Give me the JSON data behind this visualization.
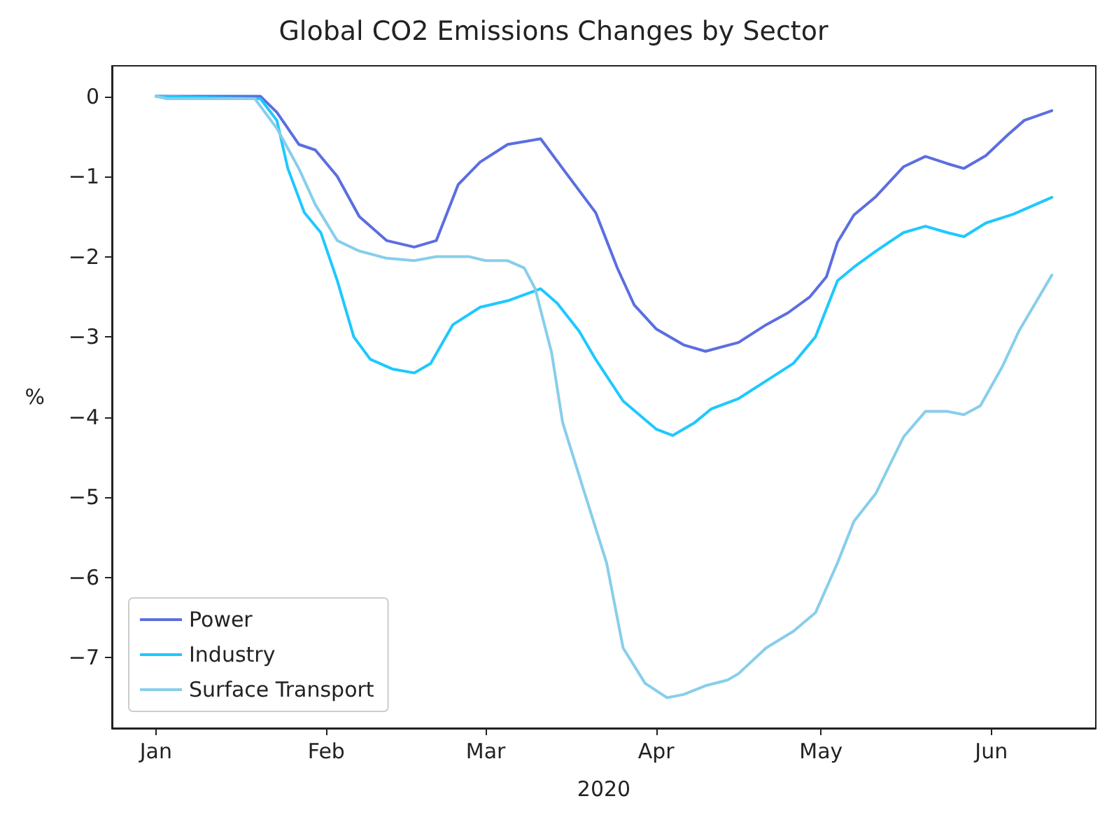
{
  "chart_data": {
    "type": "line",
    "title": "Global CO2 Emissions Changes by Sector",
    "xlabel": "2020",
    "ylabel": "%",
    "xlim": [
      "2019-12-24",
      "2020-06-20"
    ],
    "ylim": [
      -7.88,
      0.38
    ],
    "xticks": [
      {
        "value": "2020-01-01",
        "label": "Jan"
      },
      {
        "value": "2020-02-01",
        "label": "Feb"
      },
      {
        "value": "2020-03-01",
        "label": "Mar"
      },
      {
        "value": "2020-04-01",
        "label": "Apr"
      },
      {
        "value": "2020-05-01",
        "label": "May"
      },
      {
        "value": "2020-06-01",
        "label": "Jun"
      }
    ],
    "yticks": [
      0,
      -1,
      -2,
      -3,
      -4,
      -5,
      -6,
      -7
    ],
    "grid": false,
    "legend": "bottom left",
    "marker": "none",
    "line_style": "solid",
    "series": [
      {
        "name": "Power",
        "color": "#5b6ee1",
        "x": [
          "2020-01-01",
          "2020-01-20",
          "2020-01-23",
          "2020-01-27",
          "2020-01-30",
          "2020-02-03",
          "2020-02-07",
          "2020-02-12",
          "2020-02-17",
          "2020-02-21",
          "2020-02-25",
          "2020-02-29",
          "2020-03-05",
          "2020-03-11",
          "2020-03-15",
          "2020-03-21",
          "2020-03-25",
          "2020-03-28",
          "2020-04-01",
          "2020-04-06",
          "2020-04-10",
          "2020-04-16",
          "2020-04-21",
          "2020-04-25",
          "2020-04-29",
          "2020-05-02",
          "2020-05-04",
          "2020-05-07",
          "2020-05-11",
          "2020-05-16",
          "2020-05-20",
          "2020-05-24",
          "2020-05-27",
          "2020-05-31",
          "2020-06-04",
          "2020-06-07",
          "2020-06-12"
        ],
        "values": [
          0,
          0,
          -0.2,
          -0.6,
          -0.67,
          -1.0,
          -1.5,
          -1.8,
          -1.88,
          -1.8,
          -1.1,
          -0.82,
          -0.6,
          -0.53,
          -0.9,
          -1.45,
          -2.15,
          -2.6,
          -2.9,
          -3.1,
          -3.18,
          -3.07,
          -2.85,
          -2.7,
          -2.5,
          -2.25,
          -1.82,
          -1.48,
          -1.25,
          -0.88,
          -0.75,
          -0.84,
          -0.9,
          -0.74,
          -0.48,
          -0.3,
          -0.18
        ]
      },
      {
        "name": "Industry",
        "color": "#1ec8ff",
        "x": [
          "2020-01-01",
          "2020-01-20",
          "2020-01-23",
          "2020-01-25",
          "2020-01-28",
          "2020-01-31",
          "2020-02-03",
          "2020-02-06",
          "2020-02-09",
          "2020-02-13",
          "2020-02-17",
          "2020-02-20",
          "2020-02-24",
          "2020-02-29",
          "2020-03-05",
          "2020-03-09",
          "2020-03-11",
          "2020-03-14",
          "2020-03-18",
          "2020-03-21",
          "2020-03-26",
          "2020-04-01",
          "2020-04-04",
          "2020-04-08",
          "2020-04-11",
          "2020-04-16",
          "2020-04-21",
          "2020-04-26",
          "2020-04-30",
          "2020-05-04",
          "2020-05-07",
          "2020-05-11",
          "2020-05-16",
          "2020-05-20",
          "2020-05-24",
          "2020-05-27",
          "2020-05-31",
          "2020-06-05",
          "2020-06-12"
        ],
        "values": [
          0,
          -0.03,
          -0.3,
          -0.9,
          -1.45,
          -1.7,
          -2.3,
          -3.0,
          -3.28,
          -3.4,
          -3.45,
          -3.33,
          -2.85,
          -2.63,
          -2.55,
          -2.45,
          -2.4,
          -2.58,
          -2.93,
          -3.28,
          -3.8,
          -4.15,
          -4.23,
          -4.07,
          -3.9,
          -3.77,
          -3.55,
          -3.33,
          -3.0,
          -2.3,
          -2.13,
          -1.93,
          -1.7,
          -1.62,
          -1.7,
          -1.75,
          -1.58,
          -1.47,
          -1.26
        ]
      },
      {
        "name": "Surface Transport",
        "color": "#87ceeb",
        "x": [
          "2020-01-01",
          "2020-01-03",
          "2020-01-19",
          "2020-01-23",
          "2020-01-27",
          "2020-01-30",
          "2020-02-03",
          "2020-02-07",
          "2020-02-12",
          "2020-02-17",
          "2020-02-21",
          "2020-02-27",
          "2020-03-01",
          "2020-03-05",
          "2020-03-08",
          "2020-03-10",
          "2020-03-13",
          "2020-03-15",
          "2020-03-19",
          "2020-03-23",
          "2020-03-26",
          "2020-03-30",
          "2020-04-03",
          "2020-04-06",
          "2020-04-10",
          "2020-04-14",
          "2020-04-16",
          "2020-04-21",
          "2020-04-26",
          "2020-04-30",
          "2020-05-04",
          "2020-05-07",
          "2020-05-11",
          "2020-05-16",
          "2020-05-20",
          "2020-05-24",
          "2020-05-27",
          "2020-05-30",
          "2020-06-03",
          "2020-06-06",
          "2020-06-12"
        ],
        "values": [
          0,
          -0.03,
          -0.03,
          -0.4,
          -0.9,
          -1.35,
          -1.8,
          -1.93,
          -2.02,
          -2.05,
          -2.0,
          -2.0,
          -2.05,
          -2.05,
          -2.14,
          -2.4,
          -3.2,
          -4.07,
          -4.95,
          -5.82,
          -6.88,
          -7.32,
          -7.5,
          -7.46,
          -7.35,
          -7.28,
          -7.2,
          -6.88,
          -6.67,
          -6.44,
          -5.82,
          -5.3,
          -4.95,
          -4.25,
          -3.93,
          -3.93,
          -3.97,
          -3.86,
          -3.37,
          -2.93,
          -2.23
        ]
      }
    ]
  }
}
